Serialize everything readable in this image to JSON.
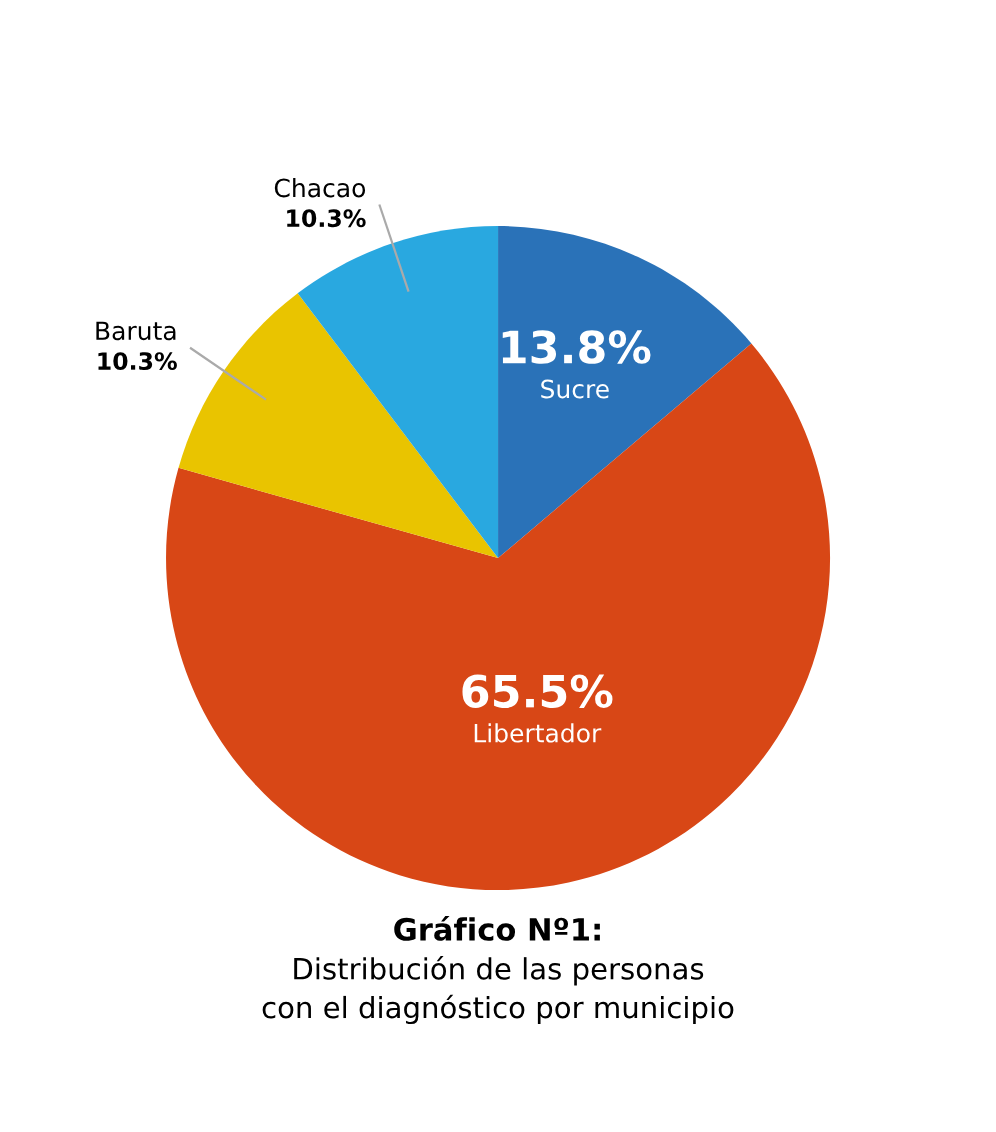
{
  "chart_data": {
    "type": "pie",
    "title": "Gráfico Nº1:",
    "subtitle": "Distribución de las personas\ncon el diagnóstico por municipio",
    "categories": [
      "Sucre",
      "Libertador",
      "Baruta",
      "Chacao"
    ],
    "values": [
      13.8,
      65.5,
      10.3,
      10.3
    ],
    "colors": [
      "#2a72b8",
      "#d84716",
      "#e9c400",
      "#29a8e0"
    ],
    "value_labels": [
      "13.8%",
      "65.5%",
      "10.3%",
      "10.3%"
    ]
  }
}
